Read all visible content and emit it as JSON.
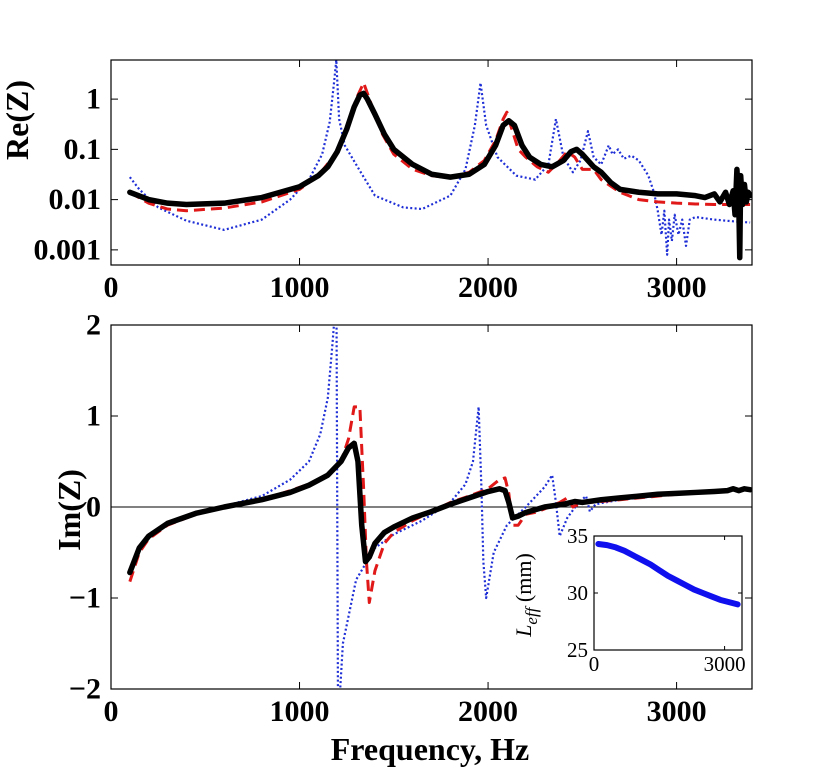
{
  "chart_data": [
    {
      "type": "line",
      "panel": "top",
      "ylabel": "Re(Z)",
      "xlabel": "",
      "yscale": "log",
      "xlim": [
        0,
        3400
      ],
      "ylim": [
        0.0005,
        6
      ],
      "xticks": [
        0,
        1000,
        2000,
        3000
      ],
      "xtick_labels": [
        "0",
        "1000",
        "2000",
        "3000"
      ],
      "yticks": [
        1,
        0.1,
        0.01,
        0.001
      ],
      "ytick_labels": [
        "1",
        "0.1",
        "0.01",
        "0.001"
      ],
      "series": [
        {
          "name": "blue-dotted",
          "color": "#1f2fd6",
          "style": "dotted",
          "x": [
            100,
            150,
            250,
            400,
            600,
            800,
            950,
            1050,
            1120,
            1160,
            1185,
            1195,
            1210,
            1240,
            1300,
            1400,
            1550,
            1650,
            1800,
            1880,
            1930,
            1960,
            1990,
            2050,
            2150,
            2250,
            2320,
            2360,
            2400,
            2450,
            2490,
            2530,
            2560,
            2600,
            2640,
            2660,
            2690,
            2720,
            2760,
            2800,
            2850,
            2880,
            2900,
            2920,
            2935,
            2950,
            2960,
            2975,
            2990,
            3010,
            3030,
            3050,
            3070,
            3100,
            3200,
            3300,
            3390
          ],
          "y": [
            0.028,
            0.016,
            0.007,
            0.0038,
            0.0025,
            0.004,
            0.01,
            0.025,
            0.08,
            0.35,
            2.5,
            6,
            0.4,
            0.12,
            0.05,
            0.012,
            0.007,
            0.0065,
            0.012,
            0.04,
            0.3,
            2.1,
            0.3,
            0.07,
            0.03,
            0.025,
            0.05,
            0.4,
            0.07,
            0.035,
            0.06,
            0.23,
            0.07,
            0.05,
            0.12,
            0.08,
            0.1,
            0.065,
            0.075,
            0.06,
            0.03,
            0.014,
            0.006,
            0.002,
            0.006,
            0.0008,
            0.004,
            0.0015,
            0.005,
            0.002,
            0.004,
            0.0012,
            0.004,
            0.0045,
            0.004,
            0.0037,
            0.0035
          ]
        },
        {
          "name": "red-dashed",
          "color": "#e01818",
          "style": "dashed",
          "x": [
            100,
            200,
            300,
            400,
            600,
            800,
            1000,
            1100,
            1200,
            1260,
            1300,
            1340,
            1380,
            1440,
            1500,
            1600,
            1700,
            1800,
            1900,
            1980,
            2040,
            2080,
            2100,
            2120,
            2160,
            2200,
            2260,
            2320,
            2380,
            2420,
            2460,
            2500,
            2560,
            2600,
            2700,
            2800,
            2900,
            3000,
            3100,
            3200,
            3390
          ],
          "y": [
            0.014,
            0.0085,
            0.0065,
            0.006,
            0.0068,
            0.009,
            0.016,
            0.03,
            0.09,
            0.35,
            1.0,
            2.1,
            0.8,
            0.2,
            0.08,
            0.04,
            0.03,
            0.027,
            0.035,
            0.06,
            0.15,
            0.4,
            0.55,
            0.3,
            0.1,
            0.07,
            0.045,
            0.035,
            0.06,
            0.09,
            0.07,
            0.04,
            0.04,
            0.025,
            0.014,
            0.01,
            0.009,
            0.0085,
            0.0082,
            0.008,
            0.008
          ]
        },
        {
          "name": "black-solid",
          "color": "#000000",
          "style": "solid",
          "x": [
            100,
            200,
            300,
            400,
            600,
            800,
            1000,
            1100,
            1150,
            1200,
            1250,
            1290,
            1320,
            1340,
            1360,
            1400,
            1450,
            1500,
            1600,
            1700,
            1800,
            1900,
            1980,
            2040,
            2080,
            2110,
            2140,
            2180,
            2220,
            2280,
            2340,
            2400,
            2440,
            2470,
            2500,
            2560,
            2600,
            2650,
            2700,
            2800,
            2900,
            3000,
            3100,
            3150,
            3200,
            3230,
            3260,
            3280,
            3300,
            3310,
            3320,
            3330,
            3335,
            3340,
            3350,
            3360,
            3370,
            3380,
            3390
          ],
          "y": [
            0.014,
            0.01,
            0.0085,
            0.008,
            0.0085,
            0.011,
            0.018,
            0.03,
            0.045,
            0.09,
            0.25,
            0.7,
            1.2,
            1.3,
            1.0,
            0.5,
            0.2,
            0.1,
            0.05,
            0.032,
            0.028,
            0.032,
            0.05,
            0.12,
            0.3,
            0.37,
            0.3,
            0.12,
            0.07,
            0.05,
            0.045,
            0.06,
            0.09,
            0.1,
            0.08,
            0.045,
            0.035,
            0.022,
            0.016,
            0.014,
            0.013,
            0.013,
            0.012,
            0.011,
            0.013,
            0.009,
            0.014,
            0.008,
            0.015,
            0.005,
            0.04,
            0.008,
            0.0007,
            0.03,
            0.008,
            0.02,
            0.009,
            0.014,
            0.012
          ]
        }
      ]
    },
    {
      "type": "line",
      "panel": "bottom",
      "ylabel": "Im(Z)",
      "xlabel": "Frequency, Hz",
      "yscale": "linear",
      "xlim": [
        0,
        3400
      ],
      "ylim": [
        -2,
        2
      ],
      "xticks": [
        0,
        1000,
        2000,
        3000
      ],
      "xtick_labels": [
        "0",
        "1000",
        "2000",
        "3000"
      ],
      "yticks": [
        2,
        1,
        0,
        -1,
        -2
      ],
      "ytick_labels": [
        "2",
        "1",
        "0",
        "−1",
        "−2"
      ],
      "zero_line": true,
      "series": [
        {
          "name": "blue-dotted",
          "color": "#1f2fd6",
          "style": "dotted",
          "x": [
            100,
            150,
            200,
            300,
            450,
            600,
            800,
            950,
            1050,
            1110,
            1150,
            1175,
            1190,
            1196,
            1200,
            1204,
            1210,
            1230,
            1260,
            1300,
            1400,
            1500,
            1650,
            1800,
            1880,
            1920,
            1950,
            1965,
            1975,
            1990,
            2030,
            2100,
            2200,
            2300,
            2340,
            2360,
            2380,
            2420,
            2480,
            2520,
            2540,
            2570,
            2620,
            2700,
            2800,
            2900,
            3000,
            3200,
            3390
          ],
          "y": [
            -0.7,
            -0.45,
            -0.3,
            -0.17,
            -0.06,
            0.01,
            0.12,
            0.3,
            0.5,
            0.8,
            1.2,
            1.8,
            2.2,
            2.2,
            0,
            -2.2,
            -2.2,
            -1.5,
            -1.2,
            -0.8,
            -0.45,
            -0.3,
            -0.15,
            0.05,
            0.25,
            0.5,
            1.1,
            0.2,
            -0.6,
            -1.0,
            -0.5,
            -0.2,
            0.0,
            0.22,
            0.35,
            0.05,
            -0.32,
            -0.12,
            0.05,
            0.12,
            -0.05,
            0.03,
            0.05,
            0.08,
            0.1,
            0.12,
            0.15,
            0.18,
            0.2
          ]
        },
        {
          "name": "red-dashed",
          "color": "#e01818",
          "style": "dashed",
          "x": [
            100,
            150,
            200,
            300,
            450,
            600,
            800,
            950,
            1050,
            1150,
            1220,
            1260,
            1290,
            1320,
            1340,
            1355,
            1370,
            1400,
            1450,
            1500,
            1600,
            1700,
            1800,
            1900,
            2000,
            2060,
            2090,
            2110,
            2130,
            2160,
            2200,
            2250,
            2300,
            2380,
            2420,
            2450,
            2480,
            2520,
            2600,
            2700,
            2800,
            2900,
            3000,
            3200,
            3390
          ],
          "y": [
            -0.82,
            -0.5,
            -0.35,
            -0.2,
            -0.08,
            0.0,
            0.08,
            0.18,
            0.25,
            0.35,
            0.5,
            0.75,
            1.1,
            1.1,
            0.2,
            -0.6,
            -1.05,
            -0.7,
            -0.4,
            -0.28,
            -0.15,
            -0.05,
            0.05,
            0.12,
            0.2,
            0.3,
            0.32,
            0.15,
            -0.2,
            -0.2,
            -0.08,
            -0.06,
            -0.02,
            0.05,
            0.1,
            0.0,
            0.03,
            0.05,
            0.06,
            0.08,
            0.1,
            0.12,
            0.14,
            0.18,
            0.2
          ]
        },
        {
          "name": "black-solid",
          "color": "#000000",
          "style": "solid",
          "x": [
            100,
            150,
            200,
            300,
            450,
            600,
            800,
            950,
            1050,
            1150,
            1220,
            1260,
            1290,
            1310,
            1330,
            1350,
            1370,
            1400,
            1450,
            1500,
            1600,
            1700,
            1800,
            1900,
            2000,
            2060,
            2090,
            2110,
            2130,
            2160,
            2200,
            2250,
            2300,
            2400,
            2460,
            2500,
            2600,
            2700,
            2800,
            2900,
            3000,
            3100,
            3200,
            3270,
            3300,
            3330,
            3360,
            3390
          ],
          "y": [
            -0.72,
            -0.45,
            -0.32,
            -0.18,
            -0.07,
            0.0,
            0.08,
            0.16,
            0.24,
            0.35,
            0.5,
            0.65,
            0.7,
            0.5,
            -0.2,
            -0.6,
            -0.55,
            -0.4,
            -0.28,
            -0.22,
            -0.12,
            -0.05,
            0.03,
            0.1,
            0.17,
            0.2,
            0.18,
            0.05,
            -0.12,
            -0.1,
            -0.06,
            -0.03,
            0.0,
            0.03,
            0.06,
            0.05,
            0.08,
            0.1,
            0.12,
            0.14,
            0.15,
            0.16,
            0.17,
            0.18,
            0.2,
            0.18,
            0.2,
            0.19
          ]
        }
      ]
    },
    {
      "type": "line",
      "panel": "inset",
      "xlabel": "",
      "ylabel_main": "L",
      "ylabel_sub": "eff",
      "ylabel_units": " (mm)",
      "xlim": [
        0,
        3400
      ],
      "ylim": [
        25,
        35
      ],
      "xticks": [
        0,
        3000
      ],
      "xtick_labels": [
        "0",
        "3000"
      ],
      "yticks": [
        35,
        30,
        25
      ],
      "ytick_labels": [
        "35",
        "30",
        "25"
      ],
      "series": [
        {
          "name": "blue-thick",
          "color": "#1010ee",
          "style": "solid",
          "x": [
            100,
            300,
            500,
            700,
            900,
            1100,
            1300,
            1500,
            1700,
            1900,
            2100,
            2300,
            2500,
            2700,
            2900,
            3100,
            3300
          ],
          "y": [
            34.3,
            34.2,
            34.0,
            33.7,
            33.3,
            32.9,
            32.5,
            32.0,
            31.5,
            31.1,
            30.7,
            30.3,
            30.0,
            29.7,
            29.4,
            29.2,
            29.0
          ]
        }
      ]
    }
  ]
}
